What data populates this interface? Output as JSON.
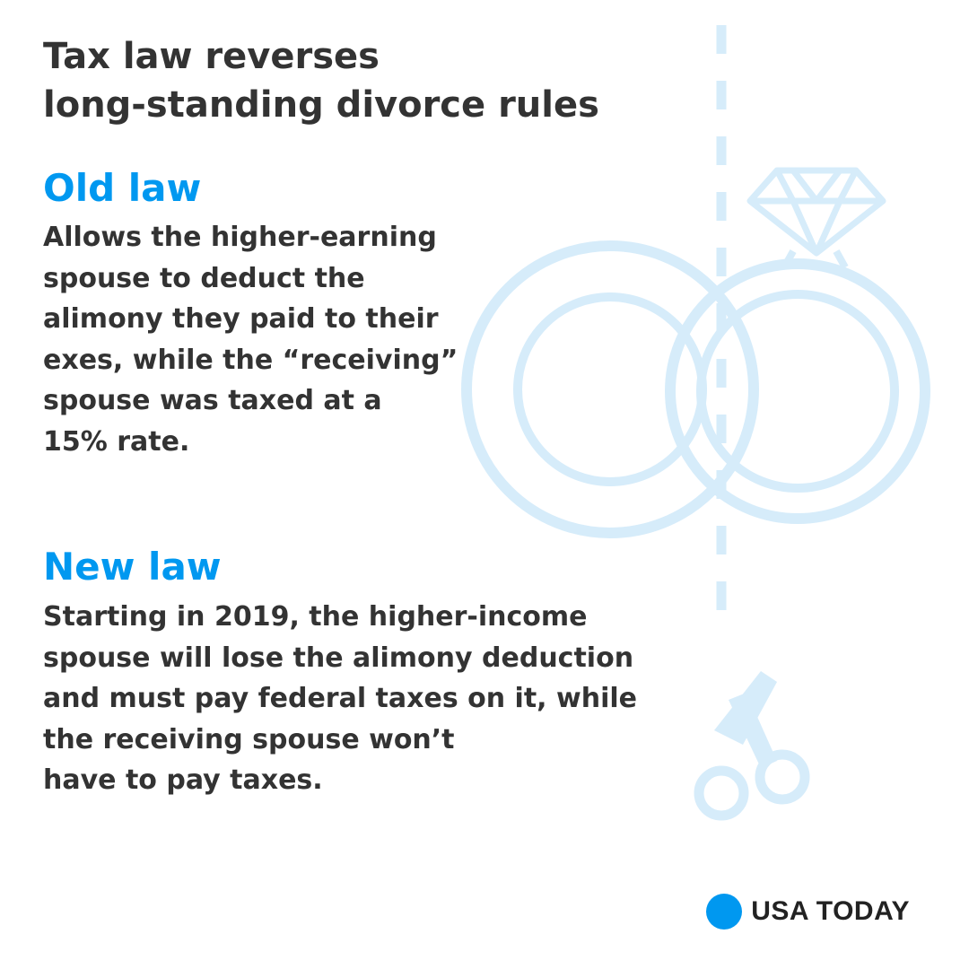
{
  "title": "Tax law reverses\nlong-standing divorce rules",
  "old_law": {
    "heading": "Old law",
    "text": "Allows the higher-earning\nspouse to deduct the\nalimony they paid to their\nexes, while the “receiving”\nspouse was taxed at a\n15% rate."
  },
  "new_law": {
    "heading": "New law",
    "text": "Starting in 2019, the higher-income\nspouse will lose the alimony deduction\nand must pay federal taxes on it, while\nthe receiving spouse won’t\nhave to pay taxes."
  },
  "brand": {
    "name": "USA TODAY",
    "accent_color": "#0098f0"
  },
  "illustration": {
    "icons": [
      "wedding-rings-icon",
      "diamond-icon",
      "scissors-icon",
      "dashed-cut-line"
    ],
    "color": "#d6ecfa"
  }
}
